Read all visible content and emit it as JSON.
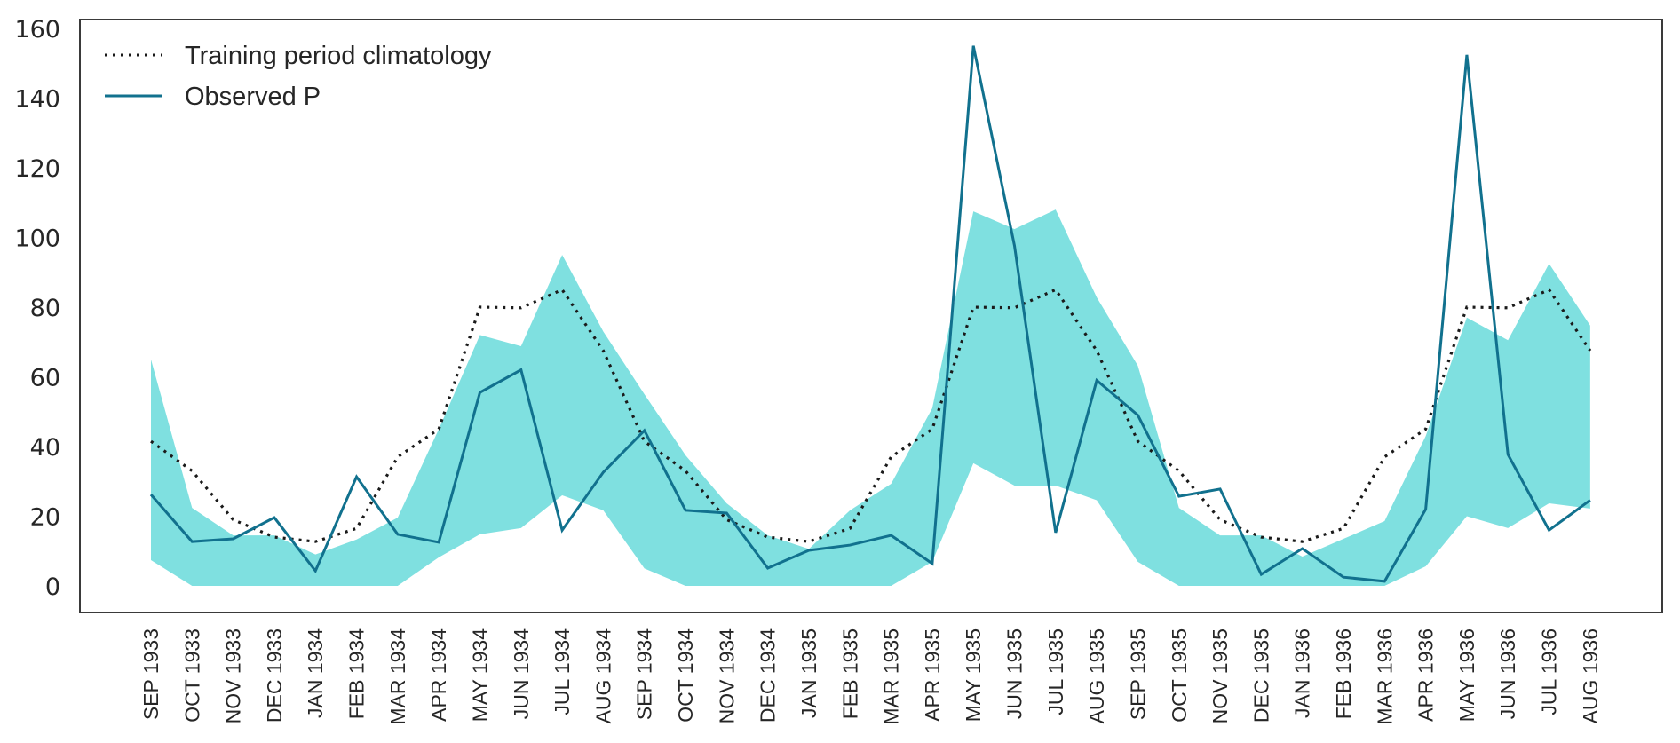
{
  "chart_data": {
    "type": "line",
    "title": "",
    "xlabel": "",
    "ylabel": "",
    "ylim": [
      -8,
      164
    ],
    "yticks": [
      0,
      20,
      40,
      60,
      80,
      100,
      120,
      140,
      160
    ],
    "ytick_labels": [
      "0",
      "20",
      "40",
      "60",
      "80",
      "100",
      "120",
      "140",
      "160"
    ],
    "grid": false,
    "legend_position": "top-left",
    "categories": [
      "SEP 1933",
      "OCT 1933",
      "NOV 1933",
      "DEC 1933",
      "JAN 1934",
      "FEB 1934",
      "MAR 1934",
      "APR 1934",
      "MAY 1934",
      "JUN 1934",
      "JUL 1934",
      "AUG 1934",
      "SEP 1934",
      "OCT 1934",
      "NOV 1934",
      "DEC 1934",
      "JAN 1935",
      "FEB 1935",
      "MAR 1935",
      "APR 1935",
      "MAY 1935",
      "JUN 1935",
      "JUL 1935",
      "AUG 1935",
      "SEP 1935",
      "OCT 1935",
      "NOV 1935",
      "DEC 1935",
      "JAN 1936",
      "FEB 1936",
      "MAR 1936",
      "APR 1936",
      "MAY 1936",
      "JUN 1936",
      "JUL 1936",
      "AUG 1936"
    ],
    "band": {
      "name": "range",
      "color": "#7fe0e0",
      "upper": [
        65,
        22.4,
        14.5,
        14.5,
        9,
        13.3,
        19.6,
        45,
        72,
        68.8,
        95,
        73,
        55,
        37.5,
        23.7,
        14.5,
        10.6,
        21.7,
        29.3,
        51,
        107.5,
        102.4,
        108,
        82.8,
        63.2,
        22.4,
        14.5,
        14.5,
        8.4,
        13.5,
        18.6,
        43,
        77,
        70.5,
        92.5,
        74.7
      ],
      "lower": [
        7.4,
        0,
        0,
        0,
        0,
        0,
        0,
        8.2,
        14.8,
        16.6,
        26,
        21.7,
        5,
        0,
        0,
        0,
        0,
        0,
        0,
        6.9,
        35.2,
        28.8,
        28.8,
        24.6,
        6.9,
        0,
        0,
        0,
        0,
        0,
        0,
        5.6,
        20,
        16.6,
        23.7,
        22.2
      ]
    },
    "series": [
      {
        "name": "Training period climatology",
        "style": "dotted",
        "color": "#1a1a1a",
        "values": [
          41.5,
          33,
          19,
          14,
          12.7,
          16.5,
          37,
          45,
          80,
          79.8,
          85,
          67.5,
          41.5,
          33,
          19,
          14,
          12.7,
          16.5,
          37,
          45,
          80,
          79.8,
          85,
          67.5,
          41.5,
          33,
          19,
          14,
          12.7,
          16.5,
          37,
          45,
          80,
          79.8,
          85,
          67.5
        ]
      },
      {
        "name": "Observed P",
        "style": "solid",
        "color": "#11718e",
        "values": [
          26.2,
          12.7,
          13.5,
          19.6,
          4.3,
          31.3,
          14.8,
          12.5,
          55.5,
          62,
          16,
          32.6,
          44.6,
          21.7,
          20.9,
          5.1,
          10.2,
          11.7,
          14.5,
          6.4,
          155,
          97.6,
          15.3,
          59,
          49,
          25.7,
          27.8,
          3.3,
          10.7,
          2.5,
          1.3,
          22,
          152.4,
          37.7,
          16,
          24.6
        ]
      }
    ]
  }
}
